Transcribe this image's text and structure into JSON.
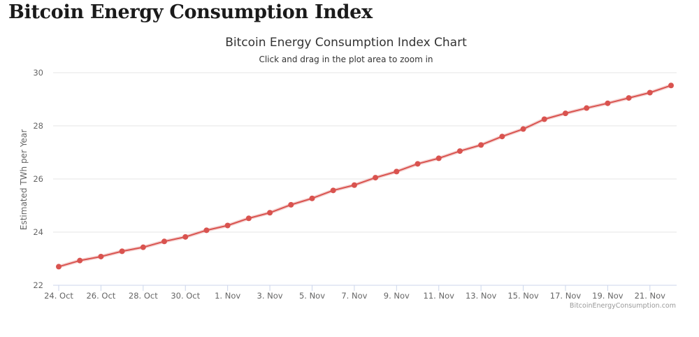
{
  "page": {
    "heading": "Bitcoin Energy Consumption Index"
  },
  "chart_data": {
    "type": "line",
    "title": "Bitcoin Energy Consumption Index Chart",
    "subtitle": "Click and drag in the plot area to zoom in",
    "xlabel": "",
    "ylabel": "Estimated TWh per Year",
    "ylim": [
      22,
      30
    ],
    "yticks": [
      22,
      24,
      26,
      28,
      30
    ],
    "xtick_labels": [
      "24. Oct",
      "26. Oct",
      "28. Oct",
      "30. Oct",
      "1. Nov",
      "3. Nov",
      "5. Nov",
      "7. Nov",
      "9. Nov",
      "11. Nov",
      "13. Nov",
      "15. Nov",
      "17. Nov",
      "19. Nov",
      "21. Nov"
    ],
    "grid": true,
    "legend": "none",
    "credits": "BitcoinEnergyConsumption.com",
    "x": [
      "24. Oct",
      "25. Oct",
      "26. Oct",
      "27. Oct",
      "28. Oct",
      "29. Oct",
      "30. Oct",
      "31. Oct",
      "1. Nov",
      "2. Nov",
      "3. Nov",
      "4. Nov",
      "5. Nov",
      "6. Nov",
      "7. Nov",
      "8. Nov",
      "9. Nov",
      "10. Nov",
      "11. Nov",
      "12. Nov",
      "13. Nov",
      "14. Nov",
      "15. Nov",
      "16. Nov",
      "17. Nov",
      "18. Nov",
      "19. Nov",
      "20. Nov",
      "21. Nov",
      "22. Nov"
    ],
    "series": [
      {
        "color": "#d9534f",
        "values": [
          22.7,
          22.93,
          23.08,
          23.28,
          23.43,
          23.65,
          23.82,
          24.07,
          24.25,
          24.52,
          24.73,
          25.03,
          25.27,
          25.57,
          25.77,
          26.05,
          26.28,
          26.57,
          26.78,
          27.05,
          27.28,
          27.6,
          27.88,
          28.25,
          28.47,
          28.67,
          28.85,
          29.05,
          29.25,
          29.52
        ]
      }
    ]
  }
}
